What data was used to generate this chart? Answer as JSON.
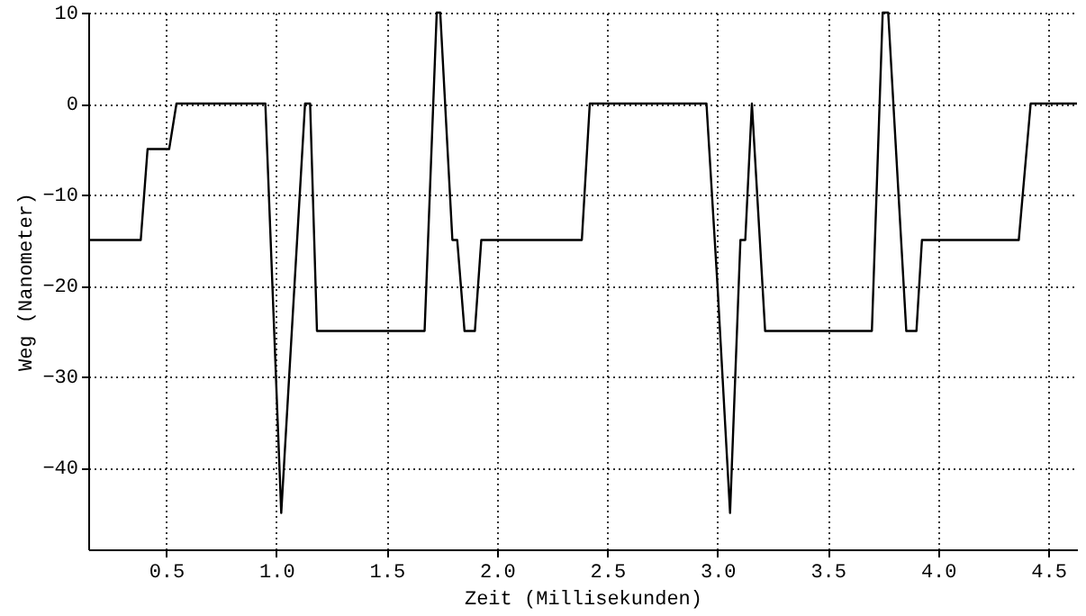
{
  "chart_data": {
    "type": "line",
    "xlabel": "Zeit (Millisekunden)",
    "ylabel": "Weg (Nanometer)",
    "x": [
      0.147,
      0.385,
      0.416,
      0.514,
      0.547,
      0.95,
      1.022,
      1.13,
      1.153,
      1.184,
      1.672,
      1.727,
      1.743,
      1.798,
      1.82,
      1.853,
      1.9,
      1.929,
      2.385,
      2.421,
      2.95,
      3.0,
      3.057,
      3.104,
      3.126,
      3.156,
      3.216,
      3.7,
      3.749,
      3.774,
      3.856,
      3.902,
      3.927,
      4.366,
      4.42,
      4.63
    ],
    "series": [
      {
        "color": "#000000",
        "values": [
          -15,
          -15,
          -5,
          -5,
          0,
          0,
          -45,
          0,
          0,
          -25,
          -25,
          10,
          10,
          -15,
          -15,
          -25,
          -25,
          -15,
          -15,
          0,
          0,
          -20,
          -45,
          -15,
          -15,
          0,
          -25,
          -25,
          10,
          10,
          -25,
          -25,
          -15,
          -15,
          0,
          0
        ]
      }
    ],
    "xlim": [
      0.147,
      4.63
    ],
    "ylim": [
      -49,
      10
    ],
    "xticks": [
      {
        "value": 0.5,
        "label": "0.5"
      },
      {
        "value": 1,
        "label": "1.0"
      },
      {
        "value": 1.5,
        "label": "1.5"
      },
      {
        "value": 2,
        "label": "2.0"
      },
      {
        "value": 2.5,
        "label": "2.5"
      },
      {
        "value": 3,
        "label": "3.0"
      },
      {
        "value": 3.5,
        "label": "3.5"
      },
      {
        "value": 4,
        "label": "4.0"
      },
      {
        "value": 4.5,
        "label": "4.5"
      }
    ],
    "yticks": [
      -40,
      -30,
      -20,
      -10,
      0,
      10
    ],
    "grid": true,
    "marker": "none",
    "line_style": "solid"
  }
}
